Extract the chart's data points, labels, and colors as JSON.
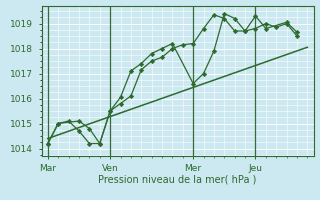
{
  "xlabel": "Pression niveau de la mer( hPa )",
  "bg_color": "#cce8f0",
  "grid_color": "#ffffff",
  "line_color": "#2d6a2d",
  "yticks": [
    1014,
    1015,
    1016,
    1017,
    1018,
    1019
  ],
  "xtick_labels": [
    "Mar",
    "Ven",
    "Mer",
    "Jeu"
  ],
  "xtick_positions": [
    0,
    3,
    7,
    10
  ],
  "xlim": [
    -0.3,
    12.8
  ],
  "ylim": [
    1013.7,
    1019.7
  ],
  "series1_x": [
    0.0,
    0.5,
    1.5,
    2.0,
    2.5,
    3.0,
    3.5,
    4.0,
    4.5,
    5.0,
    5.5,
    6.0,
    6.5,
    7.0,
    7.5,
    8.0,
    8.5,
    9.0,
    9.5,
    10.0,
    10.5,
    11.5,
    12.0
  ],
  "series1_y": [
    1014.2,
    1015.0,
    1015.1,
    1014.8,
    1014.2,
    1015.5,
    1015.8,
    1016.1,
    1017.15,
    1017.5,
    1017.65,
    1018.0,
    1018.15,
    1018.2,
    1018.8,
    1019.35,
    1019.2,
    1018.7,
    1018.7,
    1019.3,
    1018.8,
    1019.05,
    1018.65
  ],
  "series2_x": [
    0.0,
    0.5,
    1.0,
    1.5,
    2.0,
    2.5,
    3.0,
    3.5,
    4.0,
    4.5,
    5.0,
    5.5,
    6.0,
    7.0,
    7.5,
    8.0,
    8.5,
    9.0,
    9.5,
    10.0,
    10.5,
    11.0,
    11.5,
    12.0
  ],
  "series2_y": [
    1014.2,
    1015.0,
    1015.1,
    1014.7,
    1014.2,
    1014.2,
    1015.5,
    1016.05,
    1017.1,
    1017.4,
    1017.8,
    1018.0,
    1018.2,
    1016.6,
    1017.0,
    1017.9,
    1019.4,
    1019.2,
    1018.7,
    1018.8,
    1019.0,
    1018.85,
    1019.0,
    1018.5
  ],
  "trend_x": [
    0.0,
    12.5
  ],
  "trend_y": [
    1014.4,
    1018.05
  ],
  "vline_positions": [
    0,
    3,
    7,
    10
  ]
}
